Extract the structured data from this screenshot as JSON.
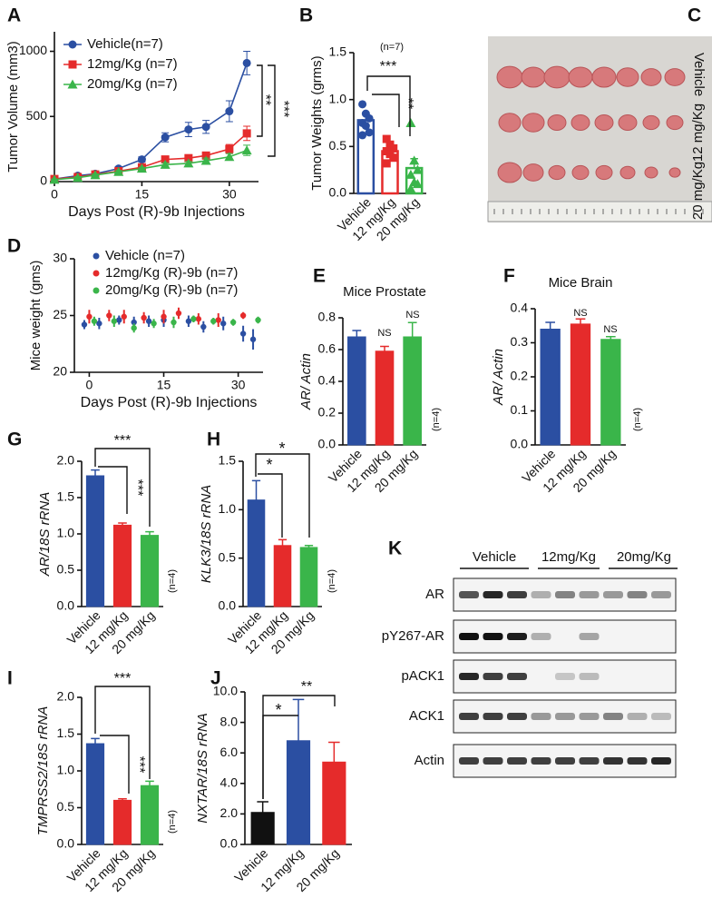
{
  "chart_data": [
    {
      "panel": "A",
      "type": "line",
      "x_label": "Days Post (R)-9b Injections",
      "y_label": "Tumor Volume (mm3)",
      "x": [
        0,
        4,
        7,
        11,
        15,
        19,
        23,
        26,
        30,
        33
      ],
      "xlim": [
        0,
        35
      ],
      "xticks": [
        0,
        15,
        30
      ],
      "ylim": [
        0,
        1150
      ],
      "yticks": [
        0,
        500,
        1000
      ],
      "series": [
        {
          "name": "Vehicle(n=7)",
          "color": "#2b4fa2",
          "marker": "circle",
          "values": [
            20,
            45,
            60,
            100,
            170,
            340,
            400,
            420,
            540,
            910
          ],
          "errors": [
            8,
            10,
            10,
            15,
            20,
            35,
            55,
            50,
            80,
            90
          ]
        },
        {
          "name": "12mg/Kg (n=7)",
          "color": "#e52b2b",
          "marker": "square",
          "values": [
            20,
            35,
            55,
            80,
            110,
            170,
            180,
            200,
            250,
            370
          ],
          "errors": [
            8,
            8,
            10,
            10,
            15,
            25,
            25,
            20,
            35,
            55
          ]
        },
        {
          "name": "20mg/Kg (n=7)",
          "color": "#3ab54a",
          "marker": "triangle",
          "values": [
            15,
            30,
            50,
            75,
            100,
            130,
            140,
            160,
            190,
            240
          ],
          "errors": [
            5,
            8,
            8,
            10,
            10,
            15,
            15,
            20,
            25,
            40
          ]
        }
      ],
      "annotations": [
        "**",
        "***"
      ]
    },
    {
      "panel": "B",
      "type": "bar",
      "bar_style": "outline",
      "y_label": "Tumor Weights (grms)",
      "categories": [
        "Vehicle",
        "12 mg/Kg",
        "20 mg/Kg"
      ],
      "values": [
        0.78,
        0.45,
        0.27
      ],
      "errors": [
        0.07,
        0.05,
        0.1
      ],
      "colors": [
        "#2b4fa2",
        "#e52b2b",
        "#3ab54a"
      ],
      "points": [
        [
          0.95,
          0.85,
          0.8,
          0.75,
          0.72,
          0.65,
          0.62
        ],
        [
          0.58,
          0.52,
          0.48,
          0.45,
          0.42,
          0.38,
          0.32
        ],
        [
          0.75,
          0.35,
          0.25,
          0.2,
          0.12,
          0.1,
          0.05
        ]
      ],
      "ylim": [
        0,
        1.5
      ],
      "yticks": [
        {
          "value": 0,
          "label": "0.0"
        },
        0.5,
        {
          "value": 1,
          "label": "1.0"
        },
        1.5
      ],
      "annotations": [
        "(n=7)",
        "***",
        "**"
      ]
    },
    {
      "panel": "D",
      "type": "scatter",
      "x_label": "Days Post (R)-9b Injections",
      "y_label": "Mice weight (gms)",
      "xlim": [
        -3,
        35
      ],
      "xticks": [
        0,
        15,
        30
      ],
      "ylim": [
        20,
        30
      ],
      "yticks": [
        20,
        25,
        30
      ],
      "series": [
        {
          "name": "Vehicle (n=7)",
          "color": "#2b4fa2",
          "x": [
            -1,
            2,
            6,
            9,
            12,
            15,
            20,
            23,
            27,
            31,
            33
          ],
          "values": [
            24.2,
            24.3,
            24.6,
            24.4,
            24.5,
            24.6,
            24.5,
            24.0,
            24.3,
            23.4,
            22.9
          ],
          "errors": [
            0.4,
            0.5,
            0.4,
            0.5,
            0.5,
            0.6,
            0.5,
            0.5,
            0.6,
            0.7,
            0.9
          ]
        },
        {
          "name": "12mg/Kg (R)-9b (n=7)",
          "color": "#e52b2b",
          "x": [
            0,
            4,
            7,
            11,
            15,
            18,
            22,
            26,
            31
          ],
          "values": [
            24.9,
            25.0,
            24.9,
            24.8,
            24.9,
            25.2,
            24.7,
            24.6,
            25.0
          ],
          "errors": [
            0.6,
            0.5,
            0.6,
            0.5,
            0.6,
            0.5,
            0.5,
            0.6,
            0.3
          ]
        },
        {
          "name": "20mg/Kg (R)-9b (n=7)",
          "color": "#3ab54a",
          "x": [
            1,
            5,
            9,
            13,
            17,
            21,
            25,
            29,
            34
          ],
          "values": [
            24.5,
            24.5,
            23.9,
            24.3,
            24.4,
            24.7,
            24.5,
            24.4,
            24.6
          ],
          "errors": [
            0.4,
            0.5,
            0.4,
            0.4,
            0.5,
            0.3,
            0.3,
            0.3,
            0.3
          ]
        }
      ]
    },
    {
      "panel": "E",
      "type": "bar",
      "title": "Mice Prostate",
      "y_label": "AR/ Actin",
      "categories": [
        "Vehicle",
        "12 mg/Kg",
        "20 mg/Kg"
      ],
      "values": [
        0.68,
        0.59,
        0.68
      ],
      "errors": [
        0.04,
        0.03,
        0.09
      ],
      "colors": [
        "#2b4fa2",
        "#e52b2b",
        "#3ab54a"
      ],
      "ylim": [
        0,
        0.8
      ],
      "yticks": [
        {
          "value": 0,
          "label": "0.0"
        },
        0.2,
        0.4,
        0.6,
        0.8
      ],
      "annotations": [
        "NS",
        "NS",
        "(n=4)"
      ]
    },
    {
      "panel": "F",
      "type": "bar",
      "title": "Mice Brain",
      "y_label": "AR/ Actin",
      "categories": [
        "Vehicle",
        "12 mg/Kg",
        "20 mg/Kg"
      ],
      "values": [
        0.34,
        0.355,
        0.31
      ],
      "errors": [
        0.02,
        0.015,
        0.008
      ],
      "colors": [
        "#2b4fa2",
        "#e52b2b",
        "#3ab54a"
      ],
      "ylim": [
        0,
        0.4
      ],
      "yticks": [
        {
          "value": 0,
          "label": "0.0"
        },
        0.1,
        0.2,
        0.3,
        0.4
      ],
      "annotations": [
        "NS",
        "NS",
        "(n=4)"
      ]
    },
    {
      "panel": "G",
      "type": "bar",
      "y_label": "AR/18S rRNA",
      "categories": [
        "Vehicle",
        "12 mg/Kg",
        "20 mg/Kg"
      ],
      "values": [
        1.8,
        1.12,
        0.98
      ],
      "errors": [
        0.08,
        0.03,
        0.05
      ],
      "colors": [
        "#2b4fa2",
        "#e52b2b",
        "#3ab54a"
      ],
      "ylim": [
        0,
        2
      ],
      "yticks": [
        {
          "value": 0,
          "label": "0.0"
        },
        0.5,
        {
          "value": 1,
          "label": "1.0"
        },
        1.5,
        {
          "value": 2,
          "label": "2.0"
        }
      ],
      "annotations": [
        "***",
        "***",
        "(n=4)"
      ]
    },
    {
      "panel": "H",
      "type": "bar",
      "y_label": "KLK3/18S rRNA",
      "categories": [
        "Vehicle",
        "12 mg/Kg",
        "20 mg/Kg"
      ],
      "values": [
        1.1,
        0.63,
        0.61
      ],
      "errors": [
        0.2,
        0.06,
        0.02
      ],
      "colors": [
        "#2b4fa2",
        "#e52b2b",
        "#3ab54a"
      ],
      "ylim": [
        0,
        1.5
      ],
      "yticks": [
        {
          "value": 0,
          "label": "0.0"
        },
        0.5,
        {
          "value": 1,
          "label": "1.0"
        },
        1.5
      ],
      "annotations": [
        "*",
        "*",
        "(n=4)"
      ]
    },
    {
      "panel": "I",
      "type": "bar",
      "y_label": "TMPRSS2/18S rRNA",
      "categories": [
        "Vehicle",
        "12 mg/Kg",
        "20 mg/Kg"
      ],
      "values": [
        1.37,
        0.6,
        0.8
      ],
      "errors": [
        0.07,
        0.02,
        0.06
      ],
      "colors": [
        "#2b4fa2",
        "#e52b2b",
        "#3ab54a"
      ],
      "ylim": [
        0,
        2
      ],
      "yticks": [
        {
          "value": 0,
          "label": "0.0"
        },
        0.5,
        {
          "value": 1,
          "label": "1.0"
        },
        1.5,
        {
          "value": 2,
          "label": "2.0"
        }
      ],
      "annotations": [
        "***",
        "***",
        "(n=4)"
      ]
    },
    {
      "panel": "J",
      "type": "bar",
      "y_label": "NXTAR/18S rRNA",
      "categories": [
        "Vehicle",
        "12 mg/Kg",
        "20 mg/Kg"
      ],
      "values": [
        2.1,
        6.8,
        5.4
      ],
      "errors": [
        0.7,
        2.7,
        1.3
      ],
      "colors": [
        "#111111",
        "#2b4fa2",
        "#e52b2b"
      ],
      "ylim": [
        0,
        10
      ],
      "yticks": [
        {
          "value": 0,
          "label": "0.0"
        },
        {
          "value": 2,
          "label": "2.0"
        },
        {
          "value": 4,
          "label": "4.0"
        },
        {
          "value": 6,
          "label": "6.0"
        },
        {
          "value": 8,
          "label": "8.0"
        },
        {
          "value": 10,
          "label": "10.0"
        }
      ],
      "annotations": [
        "*",
        "**"
      ]
    }
  ],
  "photo": {
    "panel": "C",
    "labels": [
      "Vehicle",
      "12 mg/Kg",
      "20 mg/Kg"
    ]
  },
  "blot": {
    "panel": "K",
    "groups": [
      "Vehicle",
      "12mg/Kg",
      "20mg/Kg"
    ],
    "rows": [
      "AR",
      "pY267-AR",
      "pACK1",
      "ACK1",
      "Actin"
    ]
  }
}
